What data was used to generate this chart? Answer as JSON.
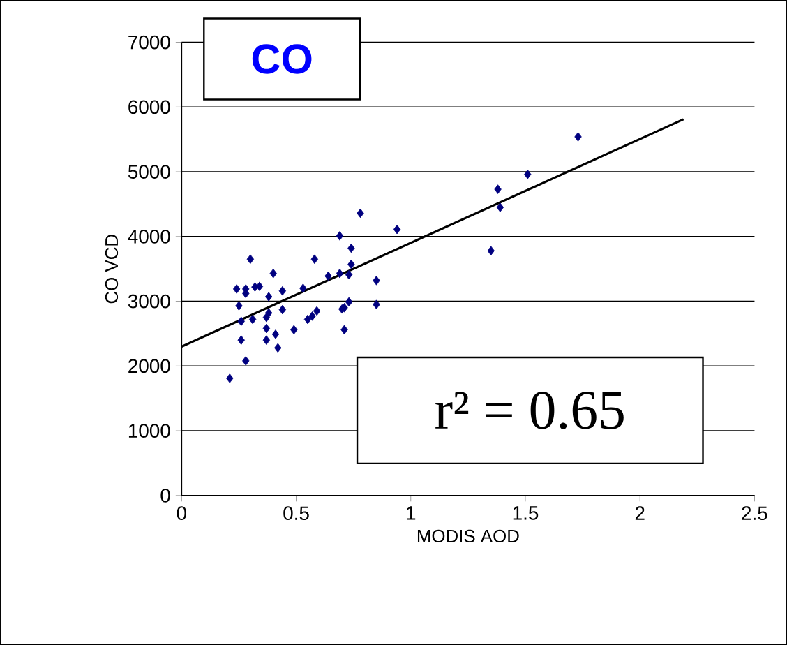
{
  "chart_data": {
    "type": "scatter",
    "xlabel": "MODIS AOD",
    "ylabel": "CO VCD",
    "annotations": [
      "CO",
      "r² = 0.65"
    ],
    "xlim": [
      0,
      2.5
    ],
    "xticks": [
      0,
      0.5,
      1,
      1.5,
      2,
      2.5
    ],
    "ylim": [
      0,
      7000
    ],
    "yticks": [
      0,
      1000,
      2000,
      3000,
      4000,
      5000,
      6000,
      7000
    ],
    "grid": "y",
    "series": [
      {
        "marker": "diamond",
        "color": "#000080",
        "x": [
          0.78,
          0.94,
          0.69,
          0.3,
          0.58,
          0.74,
          0.4,
          0.74,
          0.64,
          0.69,
          0.73,
          0.85,
          0.24,
          0.28,
          0.28,
          0.32,
          0.34,
          0.38,
          0.44,
          0.53,
          0.25,
          0.44,
          0.38,
          0.59,
          0.57,
          0.55,
          0.73,
          0.71,
          0.7,
          0.85,
          0.26,
          0.31,
          0.37,
          0.37,
          0.41,
          0.37,
          0.49,
          0.42,
          0.26,
          0.71,
          0.28,
          0.21,
          1.73,
          1.51,
          1.38,
          1.39,
          1.35
        ],
        "values": [
          4360,
          4110,
          4010,
          3650,
          3650,
          3820,
          3430,
          3570,
          3390,
          3430,
          3410,
          3320,
          3190,
          3190,
          3120,
          3220,
          3230,
          3070,
          3160,
          3200,
          2930,
          2870,
          2820,
          2850,
          2770,
          2720,
          2990,
          2900,
          2880,
          2950,
          2690,
          2720,
          2750,
          2580,
          2490,
          2400,
          2560,
          2280,
          2400,
          2560,
          2080,
          1810,
          5540,
          4960,
          4730,
          4450,
          3780
        ]
      },
      {
        "type": "line",
        "marker": "none",
        "color": "#000000",
        "x": [
          0,
          2.19
        ],
        "values": [
          2300,
          5810
        ]
      }
    ]
  }
}
